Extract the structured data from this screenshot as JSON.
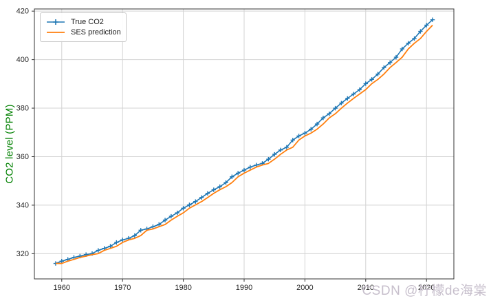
{
  "watermark": {
    "text": "CSDN @柠檬de海棠",
    "color": "#c7bfcc"
  },
  "chart_data": {
    "type": "line",
    "title": "",
    "xlabel": "",
    "ylabel": "CO2 level (PPM)",
    "ylabel_color": "#008000",
    "xlim": [
      1955.5,
      2024.5
    ],
    "ylim": [
      309.6,
      420.9
    ],
    "xticks": [
      1960,
      1970,
      1980,
      1990,
      2000,
      2010,
      2020
    ],
    "yticks": [
      320,
      340,
      360,
      380,
      400,
      420
    ],
    "grid": true,
    "grid_color": "#d3d3d3",
    "spine_color": "#333333",
    "tick_label_color": "#262626",
    "legend_position": "upper-left",
    "x": [
      1959,
      1960,
      1961,
      1962,
      1963,
      1964,
      1965,
      1966,
      1967,
      1968,
      1969,
      1970,
      1971,
      1972,
      1973,
      1974,
      1975,
      1976,
      1977,
      1978,
      1979,
      1980,
      1981,
      1982,
      1983,
      1984,
      1985,
      1986,
      1987,
      1988,
      1989,
      1990,
      1991,
      1992,
      1993,
      1994,
      1995,
      1996,
      1997,
      1998,
      1999,
      2000,
      2001,
      2002,
      2003,
      2004,
      2005,
      2006,
      2007,
      2008,
      2009,
      2010,
      2011,
      2012,
      2013,
      2014,
      2015,
      2016,
      2017,
      2018,
      2019,
      2020,
      2021
    ],
    "series": [
      {
        "name": "True CO2",
        "color": "#1f77b4",
        "marker": "plus",
        "values": [
          315.97,
          316.91,
          317.64,
          318.45,
          318.99,
          319.62,
          320.04,
          321.37,
          322.18,
          323.05,
          324.62,
          325.68,
          326.32,
          327.46,
          329.68,
          330.19,
          331.12,
          332.03,
          333.84,
          335.41,
          336.84,
          338.76,
          340.12,
          341.48,
          343.15,
          344.87,
          346.35,
          347.61,
          349.31,
          351.69,
          353.2,
          354.45,
          355.7,
          356.54,
          357.21,
          358.96,
          360.97,
          362.74,
          363.88,
          366.84,
          368.54,
          369.71,
          371.32,
          373.45,
          375.98,
          377.7,
          379.98,
          382.09,
          384.02,
          385.83,
          387.64,
          390.1,
          391.85,
          394.06,
          396.74,
          398.81,
          401.01,
          404.41,
          406.76,
          408.72,
          411.65,
          414.21,
          416.45
        ]
      },
      {
        "name": "SES prediction",
        "color": "#ff7f0e",
        "marker": "none",
        "values": [
          315.97,
          315.97,
          316.91,
          317.64,
          318.45,
          318.99,
          319.62,
          320.04,
          321.37,
          322.18,
          323.05,
          324.62,
          325.68,
          326.32,
          327.46,
          329.68,
          330.19,
          331.12,
          332.03,
          333.84,
          335.41,
          336.84,
          338.76,
          340.12,
          341.48,
          343.15,
          344.87,
          346.35,
          347.61,
          349.31,
          351.69,
          353.2,
          354.45,
          355.7,
          356.54,
          357.21,
          358.96,
          360.97,
          362.74,
          363.88,
          366.84,
          368.54,
          369.71,
          371.32,
          373.45,
          375.98,
          377.7,
          379.98,
          382.09,
          384.02,
          385.83,
          387.64,
          390.1,
          391.85,
          394.06,
          396.74,
          398.81,
          401.01,
          404.41,
          406.76,
          408.72,
          411.65,
          414.21
        ]
      }
    ]
  }
}
